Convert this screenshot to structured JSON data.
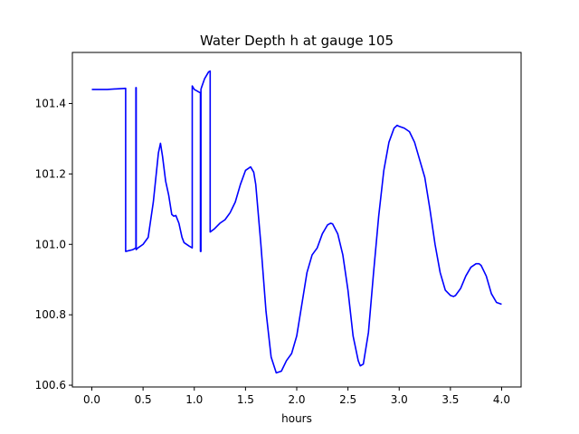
{
  "chart_data": {
    "type": "line",
    "title": "Water Depth h at gauge 105",
    "xlabel": "hours",
    "ylabel": "",
    "xlim": [
      -0.19,
      4.19
    ],
    "ylim": [
      100.595,
      101.545
    ],
    "xticks": [
      0.0,
      0.5,
      1.0,
      1.5,
      2.0,
      2.5,
      3.0,
      3.5,
      4.0
    ],
    "xtick_labels": [
      "0.0",
      "0.5",
      "1.0",
      "1.5",
      "2.0",
      "2.5",
      "3.0",
      "3.5",
      "4.0"
    ],
    "yticks": [
      100.6,
      100.8,
      101.0,
      101.2,
      101.4
    ],
    "ytick_labels": [
      "100.6",
      "100.8",
      "101.0",
      "101.2",
      "101.4"
    ],
    "grid": false,
    "series": [
      {
        "color": "#0000ff",
        "x": [
          0.0,
          0.15,
          0.33,
          0.33,
          0.4,
          0.43,
          0.43,
          0.433,
          0.433,
          0.45,
          0.5,
          0.55,
          0.6,
          0.65,
          0.67,
          0.69,
          0.72,
          0.75,
          0.78,
          0.8,
          0.82,
          0.85,
          0.88,
          0.9,
          0.95,
          0.98,
          0.98,
          1.0,
          1.03,
          1.06,
          1.06,
          1.065,
          1.065,
          1.07,
          1.1,
          1.14,
          1.155,
          1.155,
          1.2,
          1.25,
          1.3,
          1.35,
          1.4,
          1.45,
          1.5,
          1.55,
          1.58,
          1.6,
          1.65,
          1.7,
          1.75,
          1.8,
          1.85,
          1.9,
          1.95,
          2.0,
          2.05,
          2.1,
          2.15,
          2.2,
          2.25,
          2.3,
          2.33,
          2.35,
          2.4,
          2.45,
          2.5,
          2.55,
          2.6,
          2.62,
          2.65,
          2.7,
          2.75,
          2.8,
          2.85,
          2.9,
          2.95,
          2.98,
          3.0,
          3.05,
          3.1,
          3.15,
          3.2,
          3.25,
          3.3,
          3.35,
          3.4,
          3.45,
          3.5,
          3.53,
          3.55,
          3.6,
          3.65,
          3.7,
          3.75,
          3.78,
          3.8,
          3.85,
          3.9,
          3.95,
          4.0
        ],
        "y": [
          101.44,
          101.44,
          101.443,
          100.98,
          100.985,
          100.99,
          101.445,
          101.445,
          100.985,
          100.99,
          101.0,
          101.02,
          101.12,
          101.26,
          101.287,
          101.25,
          101.18,
          101.14,
          101.085,
          101.08,
          101.082,
          101.06,
          101.02,
          101.005,
          100.995,
          100.99,
          101.45,
          101.44,
          101.435,
          101.43,
          100.98,
          100.98,
          101.44,
          101.445,
          101.47,
          101.49,
          101.492,
          101.035,
          101.045,
          101.06,
          101.07,
          101.09,
          101.12,
          101.17,
          101.21,
          101.22,
          101.205,
          101.17,
          101.0,
          100.81,
          100.68,
          100.635,
          100.64,
          100.67,
          100.69,
          100.74,
          100.83,
          100.92,
          100.97,
          100.99,
          101.03,
          101.055,
          101.06,
          101.058,
          101.03,
          100.97,
          100.87,
          100.74,
          100.67,
          100.655,
          100.66,
          100.75,
          100.92,
          101.08,
          101.21,
          101.29,
          101.33,
          101.338,
          101.335,
          101.33,
          101.32,
          101.29,
          101.24,
          101.19,
          101.1,
          101.0,
          100.92,
          100.87,
          100.855,
          100.852,
          100.855,
          100.875,
          100.91,
          100.935,
          100.945,
          100.945,
          100.94,
          100.91,
          100.86,
          100.835,
          100.83
        ]
      }
    ]
  }
}
